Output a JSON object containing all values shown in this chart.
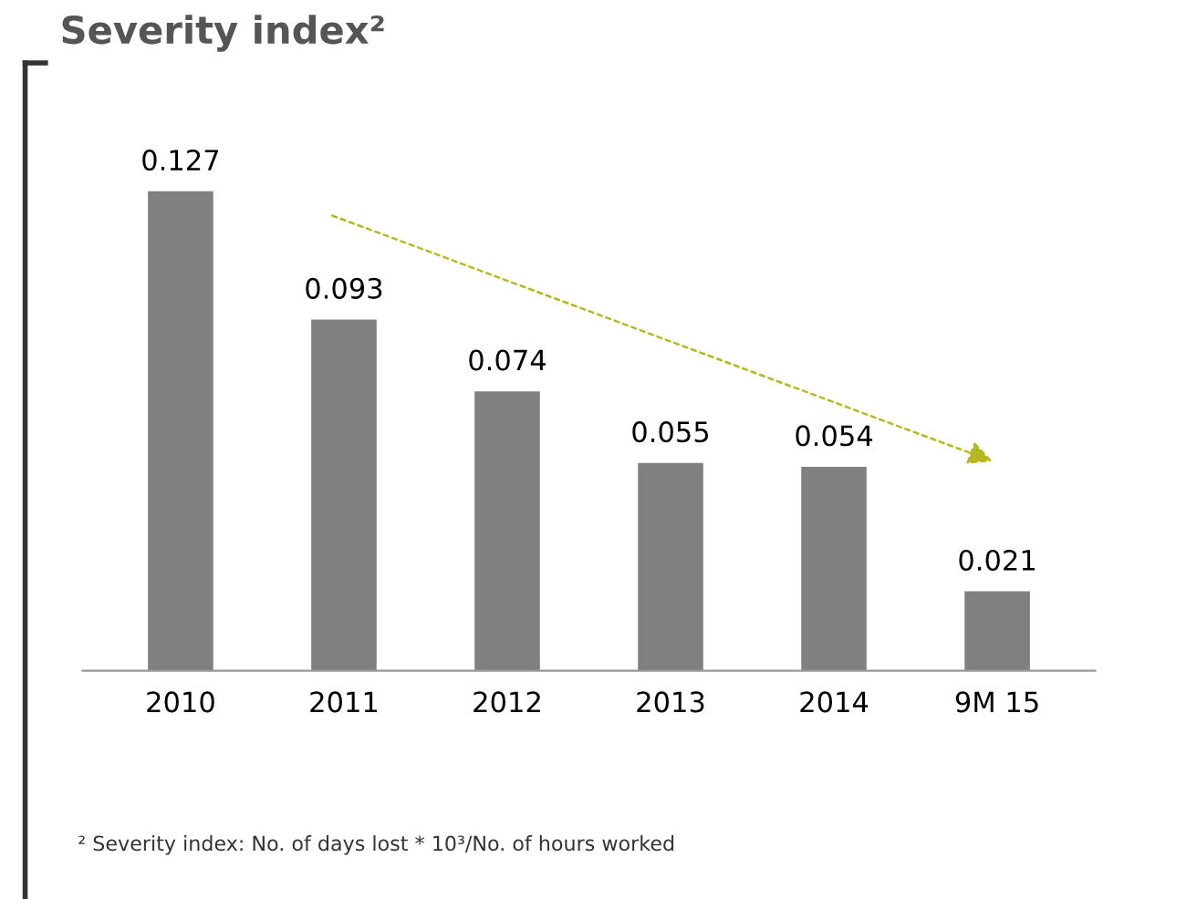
{
  "chart_data": {
    "type": "bar",
    "title": "Severity index²",
    "categories": [
      "2010",
      "2011",
      "2012",
      "2013",
      "2014",
      "9M 15"
    ],
    "values": [
      0.127,
      0.093,
      0.074,
      0.055,
      0.054,
      0.021
    ],
    "color": "#808080",
    "data_labels": true,
    "grid": false,
    "legend": false,
    "annotations": [
      "² Severity index: No. of days lost * 10³/No. of hours worked"
    ]
  }
}
